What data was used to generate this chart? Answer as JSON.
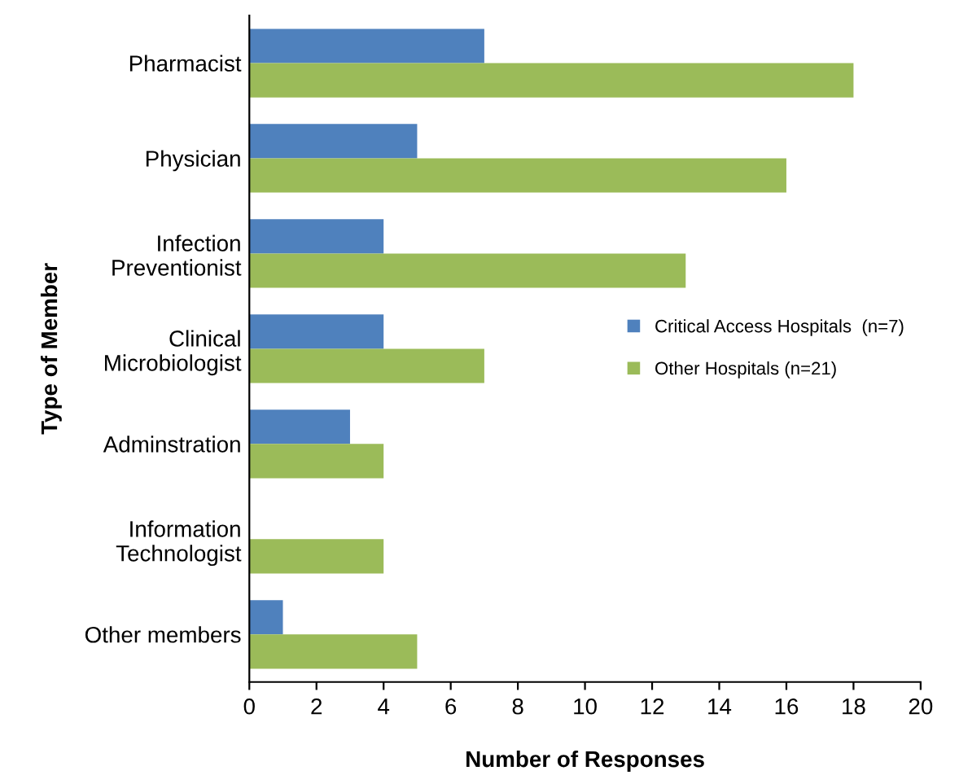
{
  "chart_data": {
    "type": "bar",
    "orientation": "horizontal",
    "xlabel": "Number of Responses",
    "ylabel": "Type of Member",
    "categories": [
      "Pharmacist",
      "Physician",
      "Infection\nPreventionist",
      "Clinical\nMicrobiologist",
      "Adminstration",
      "Information\nTechnologist",
      "Other members"
    ],
    "series": [
      {
        "name": "Critical Access Hospitals  (n=7)",
        "color": "#4f81bd",
        "values": [
          7,
          5,
          4,
          4,
          3,
          null,
          1
        ]
      },
      {
        "name": "Other Hospitals (n=21)",
        "color": "#9bbb59",
        "values": [
          18,
          16,
          13,
          7,
          4,
          4,
          5
        ]
      }
    ],
    "xlim": [
      0,
      20
    ],
    "xticks": [
      0,
      2,
      4,
      6,
      8,
      10,
      12,
      14,
      16,
      18,
      20
    ],
    "grid": false,
    "legend": "center right"
  }
}
